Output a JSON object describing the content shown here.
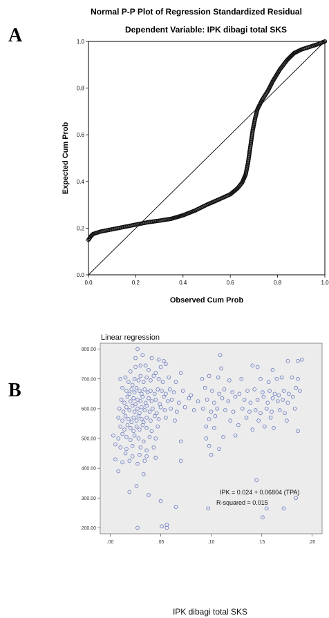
{
  "panel_a_label": "A",
  "panel_b_label": "B",
  "chart_data": [
    {
      "type": "scatter",
      "title": "Normal P-P Plot of Regression Standardized Residual",
      "subtitle": "Dependent Variable: IPK dibagi total SKS",
      "xlabel": "Observed Cum Prob",
      "ylabel": "Expected Cum Prob",
      "xlim": [
        0,
        1
      ],
      "ylim": [
        0,
        1
      ],
      "xticks": [
        "0.0",
        "0.2",
        "0.4",
        "0.6",
        "0.8",
        "1.0"
      ],
      "yticks": [
        "0.0",
        "0.2",
        "0.4",
        "0.6",
        "0.8",
        "1.0"
      ],
      "grid": false,
      "reference_line": [
        [
          0,
          0
        ],
        [
          1,
          1
        ]
      ],
      "curve_points": [
        [
          0.0,
          0.15
        ],
        [
          0.01,
          0.165
        ],
        [
          0.02,
          0.175
        ],
        [
          0.05,
          0.185
        ],
        [
          0.1,
          0.195
        ],
        [
          0.15,
          0.205
        ],
        [
          0.2,
          0.215
        ],
        [
          0.25,
          0.225
        ],
        [
          0.3,
          0.232
        ],
        [
          0.35,
          0.24
        ],
        [
          0.4,
          0.255
        ],
        [
          0.45,
          0.275
        ],
        [
          0.5,
          0.3
        ],
        [
          0.55,
          0.322
        ],
        [
          0.6,
          0.345
        ],
        [
          0.63,
          0.37
        ],
        [
          0.65,
          0.395
        ],
        [
          0.665,
          0.43
        ],
        [
          0.675,
          0.48
        ],
        [
          0.685,
          0.55
        ],
        [
          0.695,
          0.62
        ],
        [
          0.705,
          0.67
        ],
        [
          0.715,
          0.71
        ],
        [
          0.735,
          0.75
        ],
        [
          0.76,
          0.79
        ],
        [
          0.78,
          0.83
        ],
        [
          0.81,
          0.88
        ],
        [
          0.84,
          0.92
        ],
        [
          0.87,
          0.95
        ],
        [
          0.9,
          0.965
        ],
        [
          0.94,
          0.978
        ],
        [
          0.97,
          0.988
        ],
        [
          1.0,
          1.0
        ]
      ]
    },
    {
      "type": "scatter",
      "title": "Linear regression",
      "xlabel": "IPK dibagi total SKS",
      "ylabel": "",
      "xlim": [
        -0.01,
        0.21
      ],
      "ylim": [
        180,
        820
      ],
      "xticks": [
        {
          "value": 0.0,
          "label": ".00"
        },
        {
          "value": 0.05,
          "label": ".05"
        },
        {
          "value": 0.1,
          "label": ".10"
        },
        {
          "value": 0.15,
          "label": ".15"
        },
        {
          "value": 0.2,
          "label": ".20"
        }
      ],
      "yticks": [
        {
          "value": 200,
          "label": "200.00"
        },
        {
          "value": 300,
          "label": "300.00"
        },
        {
          "value": 400,
          "label": "400.00"
        },
        {
          "value": 500,
          "label": "500.00"
        },
        {
          "value": 600,
          "label": "600.00"
        },
        {
          "value": 700,
          "label": "700.00"
        },
        {
          "value": 800,
          "label": "800.00"
        }
      ],
      "annotation": [
        "IPK = 0.024 + 0.06804 (TPA)",
        "R-squared = 0.015"
      ],
      "grid": false,
      "colors": {
        "points": "#6f7fc4",
        "background": "#ececec"
      },
      "points": [
        [
          0.027,
          800
        ],
        [
          0.032,
          780
        ],
        [
          0.025,
          770
        ],
        [
          0.041,
          770
        ],
        [
          0.048,
          765
        ],
        [
          0.053,
          760
        ],
        [
          0.109,
          780
        ],
        [
          0.02,
          725
        ],
        [
          0.025,
          740
        ],
        [
          0.03,
          745
        ],
        [
          0.035,
          745
        ],
        [
          0.038,
          730
        ],
        [
          0.045,
          720
        ],
        [
          0.05,
          740
        ],
        [
          0.055,
          750
        ],
        [
          0.07,
          720
        ],
        [
          0.11,
          735
        ],
        [
          0.141,
          745
        ],
        [
          0.146,
          740
        ],
        [
          0.161,
          730
        ],
        [
          0.176,
          760
        ],
        [
          0.186,
          760
        ],
        [
          0.19,
          765
        ],
        [
          0.01,
          700
        ],
        [
          0.015,
          705
        ],
        [
          0.018,
          690
        ],
        [
          0.022,
          680
        ],
        [
          0.024,
          700
        ],
        [
          0.028,
          695
        ],
        [
          0.03,
          710
        ],
        [
          0.033,
          690
        ],
        [
          0.036,
          705
        ],
        [
          0.04,
          695
        ],
        [
          0.043,
          710
        ],
        [
          0.048,
          700
        ],
        [
          0.052,
          690
        ],
        [
          0.058,
          705
        ],
        [
          0.065,
          690
        ],
        [
          0.091,
          700
        ],
        [
          0.098,
          710
        ],
        [
          0.107,
          705
        ],
        [
          0.118,
          695
        ],
        [
          0.13,
          700
        ],
        [
          0.149,
          700
        ],
        [
          0.157,
          690
        ],
        [
          0.165,
          700
        ],
        [
          0.17,
          705
        ],
        [
          0.18,
          705
        ],
        [
          0.186,
          700
        ],
        [
          0.012,
          670
        ],
        [
          0.016,
          660
        ],
        [
          0.019,
          650
        ],
        [
          0.021,
          665
        ],
        [
          0.024,
          655
        ],
        [
          0.026,
          670
        ],
        [
          0.029,
          660
        ],
        [
          0.031,
          650
        ],
        [
          0.034,
          665
        ],
        [
          0.037,
          655
        ],
        [
          0.04,
          660
        ],
        [
          0.044,
          650
        ],
        [
          0.047,
          665
        ],
        [
          0.051,
          660
        ],
        [
          0.055,
          650
        ],
        [
          0.059,
          665
        ],
        [
          0.063,
          655
        ],
        [
          0.072,
          660
        ],
        [
          0.08,
          645
        ],
        [
          0.094,
          670
        ],
        [
          0.101,
          660
        ],
        [
          0.108,
          650
        ],
        [
          0.113,
          665
        ],
        [
          0.121,
          655
        ],
        [
          0.128,
          650
        ],
        [
          0.136,
          660
        ],
        [
          0.143,
          665
        ],
        [
          0.151,
          655
        ],
        [
          0.158,
          660
        ],
        [
          0.163,
          650
        ],
        [
          0.167,
          645
        ],
        [
          0.172,
          660
        ],
        [
          0.177,
          650
        ],
        [
          0.184,
          670
        ],
        [
          0.188,
          660
        ],
        [
          0.011,
          630
        ],
        [
          0.014,
          620
        ],
        [
          0.017,
          640
        ],
        [
          0.02,
          625
        ],
        [
          0.023,
          635
        ],
        [
          0.025,
          615
        ],
        [
          0.027,
          630
        ],
        [
          0.03,
          625
        ],
        [
          0.032,
          640
        ],
        [
          0.035,
          620
        ],
        [
          0.038,
          635
        ],
        [
          0.041,
          625
        ],
        [
          0.045,
          630
        ],
        [
          0.049,
          615
        ],
        [
          0.053,
          640
        ],
        [
          0.057,
          625
        ],
        [
          0.061,
          630
        ],
        [
          0.068,
          620
        ],
        [
          0.078,
          635
        ],
        [
          0.087,
          625
        ],
        [
          0.096,
          630
        ],
        [
          0.103,
          620
        ],
        [
          0.111,
          635
        ],
        [
          0.117,
          625
        ],
        [
          0.124,
          640
        ],
        [
          0.133,
          630
        ],
        [
          0.139,
          620
        ],
        [
          0.146,
          630
        ],
        [
          0.152,
          640
        ],
        [
          0.156,
          620
        ],
        [
          0.161,
          635
        ],
        [
          0.166,
          625
        ],
        [
          0.171,
          630
        ],
        [
          0.176,
          620
        ],
        [
          0.181,
          640
        ],
        [
          0.009,
          600
        ],
        [
          0.013,
          590
        ],
        [
          0.016,
          605
        ],
        [
          0.019,
          595
        ],
        [
          0.022,
          610
        ],
        [
          0.024,
          590
        ],
        [
          0.027,
          600
        ],
        [
          0.029,
          585
        ],
        [
          0.031,
          605
        ],
        [
          0.034,
          595
        ],
        [
          0.036,
          610
        ],
        [
          0.039,
          590
        ],
        [
          0.042,
          600
        ],
        [
          0.046,
          585
        ],
        [
          0.05,
          605
        ],
        [
          0.054,
          595
        ],
        [
          0.06,
          600
        ],
        [
          0.066,
          590
        ],
        [
          0.074,
          605
        ],
        [
          0.083,
          595
        ],
        [
          0.092,
          600
        ],
        [
          0.1,
          590
        ],
        [
          0.106,
          600
        ],
        [
          0.114,
          595
        ],
        [
          0.122,
          590
        ],
        [
          0.131,
          600
        ],
        [
          0.138,
          590
        ],
        [
          0.144,
          595
        ],
        [
          0.149,
          585
        ],
        [
          0.155,
          600
        ],
        [
          0.16,
          590
        ],
        [
          0.168,
          595
        ],
        [
          0.173,
          585
        ],
        [
          0.183,
          600
        ],
        [
          0.008,
          570
        ],
        [
          0.012,
          560
        ],
        [
          0.015,
          575
        ],
        [
          0.018,
          565
        ],
        [
          0.021,
          555
        ],
        [
          0.023,
          570
        ],
        [
          0.026,
          560
        ],
        [
          0.028,
          575
        ],
        [
          0.031,
          565
        ],
        [
          0.033,
          555
        ],
        [
          0.036,
          570
        ],
        [
          0.04,
          560
        ],
        [
          0.044,
          575
        ],
        [
          0.048,
          565
        ],
        [
          0.055,
          570
        ],
        [
          0.064,
          560
        ],
        [
          0.098,
          565
        ],
        [
          0.104,
          575
        ],
        [
          0.119,
          560
        ],
        [
          0.135,
          570
        ],
        [
          0.147,
          560
        ],
        [
          0.159,
          570
        ],
        [
          0.175,
          560
        ],
        [
          0.01,
          540
        ],
        [
          0.014,
          530
        ],
        [
          0.017,
          545
        ],
        [
          0.02,
          535
        ],
        [
          0.023,
          525
        ],
        [
          0.026,
          540
        ],
        [
          0.029,
          530
        ],
        [
          0.032,
          545
        ],
        [
          0.036,
          535
        ],
        [
          0.041,
          525
        ],
        [
          0.047,
          540
        ],
        [
          0.095,
          540
        ],
        [
          0.103,
          535
        ],
        [
          0.127,
          545
        ],
        [
          0.141,
          530
        ],
        [
          0.153,
          540
        ],
        [
          0.162,
          535
        ],
        [
          0.186,
          525
        ],
        [
          0.003,
          510
        ],
        [
          0.008,
          500
        ],
        [
          0.012,
          515
        ],
        [
          0.016,
          505
        ],
        [
          0.02,
          495
        ],
        [
          0.024,
          510
        ],
        [
          0.028,
          500
        ],
        [
          0.033,
          490
        ],
        [
          0.039,
          505
        ],
        [
          0.045,
          500
        ],
        [
          0.07,
          490
        ],
        [
          0.095,
          500
        ],
        [
          0.112,
          505
        ],
        [
          0.124,
          510
        ],
        [
          0.005,
          480
        ],
        [
          0.01,
          470
        ],
        [
          0.016,
          465
        ],
        [
          0.022,
          475
        ],
        [
          0.03,
          470
        ],
        [
          0.036,
          460
        ],
        [
          0.043,
          470
        ],
        [
          0.098,
          475
        ],
        [
          0.108,
          465
        ],
        [
          0.015,
          450
        ],
        [
          0.022,
          440
        ],
        [
          0.029,
          445
        ],
        [
          0.036,
          440
        ],
        [
          0.045,
          435
        ],
        [
          0.005,
          430
        ],
        [
          0.012,
          420
        ],
        [
          0.019,
          425
        ],
        [
          0.027,
          415
        ],
        [
          0.034,
          425
        ],
        [
          0.07,
          425
        ],
        [
          0.1,
          445
        ],
        [
          0.008,
          390
        ],
        [
          0.033,
          380
        ],
        [
          0.026,
          340
        ],
        [
          0.145,
          360
        ],
        [
          0.019,
          320
        ],
        [
          0.038,
          310
        ],
        [
          0.05,
          290
        ],
        [
          0.184,
          300
        ],
        [
          0.065,
          270
        ],
        [
          0.097,
          265
        ],
        [
          0.155,
          265
        ],
        [
          0.172,
          265
        ],
        [
          0.151,
          235
        ],
        [
          0.027,
          200
        ],
        [
          0.051,
          205
        ],
        [
          0.056,
          210
        ],
        [
          0.056,
          200
        ]
      ]
    }
  ]
}
